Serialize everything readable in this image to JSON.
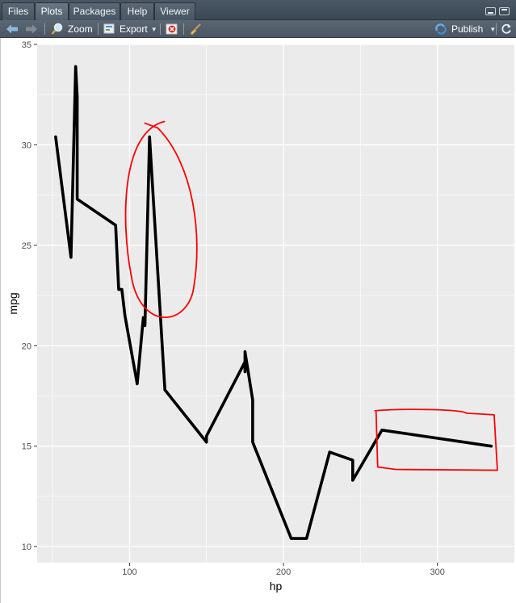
{
  "tabs": [
    {
      "label": "Files"
    },
    {
      "label": "Plots",
      "active": true
    },
    {
      "label": "Packages"
    },
    {
      "label": "Help"
    },
    {
      "label": "Viewer"
    }
  ],
  "toolbar": {
    "back_icon": "arrow-left-icon",
    "forward_icon": "arrow-right-icon",
    "zoom_label": "Zoom",
    "export_label": "Export",
    "remove_icon": "remove-plot-icon",
    "clear_icon": "broom-icon",
    "publish_label": "Publish",
    "refresh_icon": "refresh-icon"
  },
  "colors": {
    "panel_bg": "#EBEBEB",
    "grid": "#FFFFFF",
    "line": "#000000",
    "annotation": "#FF0000",
    "tick_text": "#4D4D4D"
  },
  "chart_data": {
    "type": "line",
    "xlabel": "hp",
    "ylabel": "mpg",
    "xlim": [
      40,
      350
    ],
    "ylim": [
      9.2,
      35.0
    ],
    "xticks": [
      100,
      200,
      300
    ],
    "yticks": [
      10,
      15,
      20,
      25,
      30,
      35
    ],
    "grid": true,
    "x": [
      52,
      62,
      65,
      66,
      66,
      66,
      91,
      93,
      95,
      97,
      105,
      109,
      110,
      113,
      113,
      123,
      123,
      150,
      150,
      175,
      175,
      175,
      180,
      180,
      180,
      205,
      215,
      230,
      245,
      245,
      264,
      335
    ],
    "y": [
      30.4,
      24.4,
      33.9,
      32.4,
      27.3,
      27.3,
      26.0,
      22.8,
      22.8,
      21.5,
      18.1,
      21.4,
      21.0,
      30.4,
      30.4,
      17.8,
      17.8,
      15.2,
      15.5,
      19.2,
      18.7,
      19.7,
      17.3,
      16.4,
      15.2,
      10.4,
      10.4,
      14.7,
      14.3,
      13.3,
      15.8,
      15.0
    ],
    "annotations": [
      {
        "shape": "ellipse",
        "color": "#FF0000",
        "x_range": [
          99,
          144
        ],
        "y_range": [
          21,
          31
        ]
      },
      {
        "shape": "rectangle",
        "color": "#FF0000",
        "x_range": [
          257,
          340
        ],
        "y_range": [
          13.8,
          16.8
        ]
      }
    ]
  }
}
